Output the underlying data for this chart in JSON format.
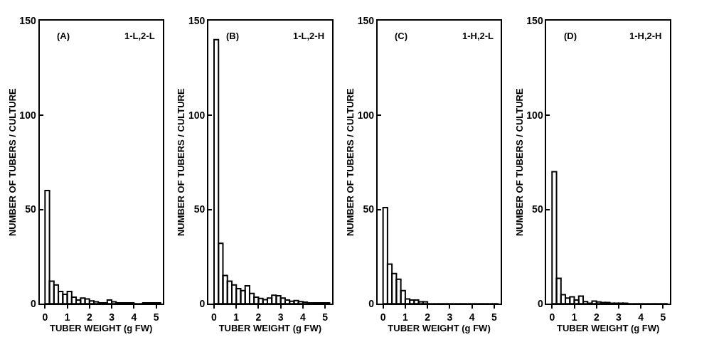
{
  "chart_data": [
    {
      "type": "histogram",
      "annotations": [
        "(A)",
        "1-L,2-L"
      ],
      "xlabel": "TUBER WEIGHT (g FW)",
      "ylabel": "NUMBER OF TUBERS / CULTURE",
      "bins": [
        0,
        0.2,
        0.4,
        0.6,
        0.8,
        1,
        1.2,
        1.4,
        1.6,
        1.8,
        2,
        2.2,
        2.4,
        2.6,
        2.8,
        3,
        3.2,
        3.4,
        3.6,
        3.8,
        4,
        4.2,
        4.4,
        4.6,
        4.8,
        5,
        5.2
      ],
      "values": [
        60,
        12,
        10,
        6.5,
        5,
        6.5,
        3.5,
        2,
        3,
        2.5,
        1.5,
        1,
        0.5,
        0.5,
        2,
        1,
        0.5,
        0.5,
        0.5,
        0.5,
        0,
        0,
        0.5,
        0.5,
        0.5,
        0.5
      ],
      "color": "#000000",
      "xlim": [
        -0.25,
        5.3
      ],
      "xticks": [
        0,
        1,
        2,
        3,
        4,
        5
      ],
      "ylim": [
        0,
        150
      ],
      "yticks": [
        0,
        50,
        100,
        150
      ]
    },
    {
      "type": "histogram",
      "annotations": [
        "(B)",
        "1-L,2-H"
      ],
      "xlabel": "TUBER WEIGHT (g FW)",
      "ylabel": "NUMBER OF TUBERS / CULTURE",
      "bins": [
        0,
        0.2,
        0.4,
        0.6,
        0.8,
        1,
        1.2,
        1.4,
        1.6,
        1.8,
        2,
        2.2,
        2.4,
        2.6,
        2.8,
        3,
        3.2,
        3.4,
        3.6,
        3.8,
        4,
        4.2,
        4.4,
        4.6,
        4.8,
        5,
        5.2
      ],
      "values": [
        140,
        32,
        15,
        12,
        10,
        8,
        7,
        9.5,
        5.5,
        3.5,
        2.8,
        2.2,
        3,
        4.5,
        4.2,
        3,
        2,
        1.3,
        1.7,
        1.1,
        0.8,
        0.5,
        0.5,
        0.5,
        0.5,
        0.5
      ],
      "color": "#000000",
      "xlim": [
        -0.25,
        5.3
      ],
      "xticks": [
        0,
        1,
        2,
        3,
        4,
        5
      ],
      "ylim": [
        0,
        150
      ],
      "yticks": [
        0,
        50,
        100,
        150
      ]
    },
    {
      "type": "histogram",
      "annotations": [
        "(C)",
        "1-H,2-L"
      ],
      "xlabel": "TUBER WEIGHT (g FW)",
      "ylabel": "NUMBER OF TUBERS / CULTURE",
      "bins": [
        0,
        0.2,
        0.4,
        0.6,
        0.8,
        1,
        1.2,
        1.4,
        1.6,
        1.8,
        2,
        2.2,
        2.4,
        2.6,
        2.8,
        3,
        3.2,
        3.4,
        3.6,
        3.8,
        4,
        4.2,
        4.4,
        4.6,
        4.8,
        5,
        5.2
      ],
      "values": [
        51,
        21,
        16,
        13,
        7,
        2.5,
        2,
        2,
        1,
        1,
        0,
        0,
        0,
        0,
        0,
        0,
        0,
        0,
        0,
        0,
        0,
        0,
        0,
        0,
        0,
        0
      ],
      "color": "#000000",
      "xlim": [
        -0.25,
        5.3
      ],
      "xticks": [
        0,
        1,
        2,
        3,
        4,
        5
      ],
      "ylim": [
        0,
        150
      ],
      "yticks": [
        0,
        50,
        100,
        150
      ]
    },
    {
      "type": "histogram",
      "annotations": [
        "(D)",
        "1-H,2-H"
      ],
      "xlabel": "TUBER WEIGHT (g FW)",
      "ylabel": "NUMBER OF TUBERS / CULTURE",
      "bins": [
        0,
        0.2,
        0.4,
        0.6,
        0.8,
        1,
        1.2,
        1.4,
        1.6,
        1.8,
        2,
        2.2,
        2.4,
        2.6,
        2.8,
        3,
        3.2,
        3.4,
        3.6,
        3.8,
        4,
        4.2,
        4.4,
        4.6,
        4.8,
        5,
        5.2
      ],
      "values": [
        70,
        13.5,
        4.8,
        3,
        3.7,
        2,
        4,
        1.1,
        0.3,
        1.4,
        0.9,
        0.7,
        0.7,
        0.3,
        0.3,
        0.3,
        0.3,
        0,
        0,
        0,
        0,
        0,
        0,
        0,
        0,
        0
      ],
      "color": "#000000",
      "xlim": [
        -0.25,
        5.3
      ],
      "xticks": [
        0,
        1,
        2,
        3,
        4,
        5
      ],
      "ylim": [
        0,
        150
      ],
      "yticks": [
        0,
        50,
        100,
        150
      ]
    }
  ]
}
